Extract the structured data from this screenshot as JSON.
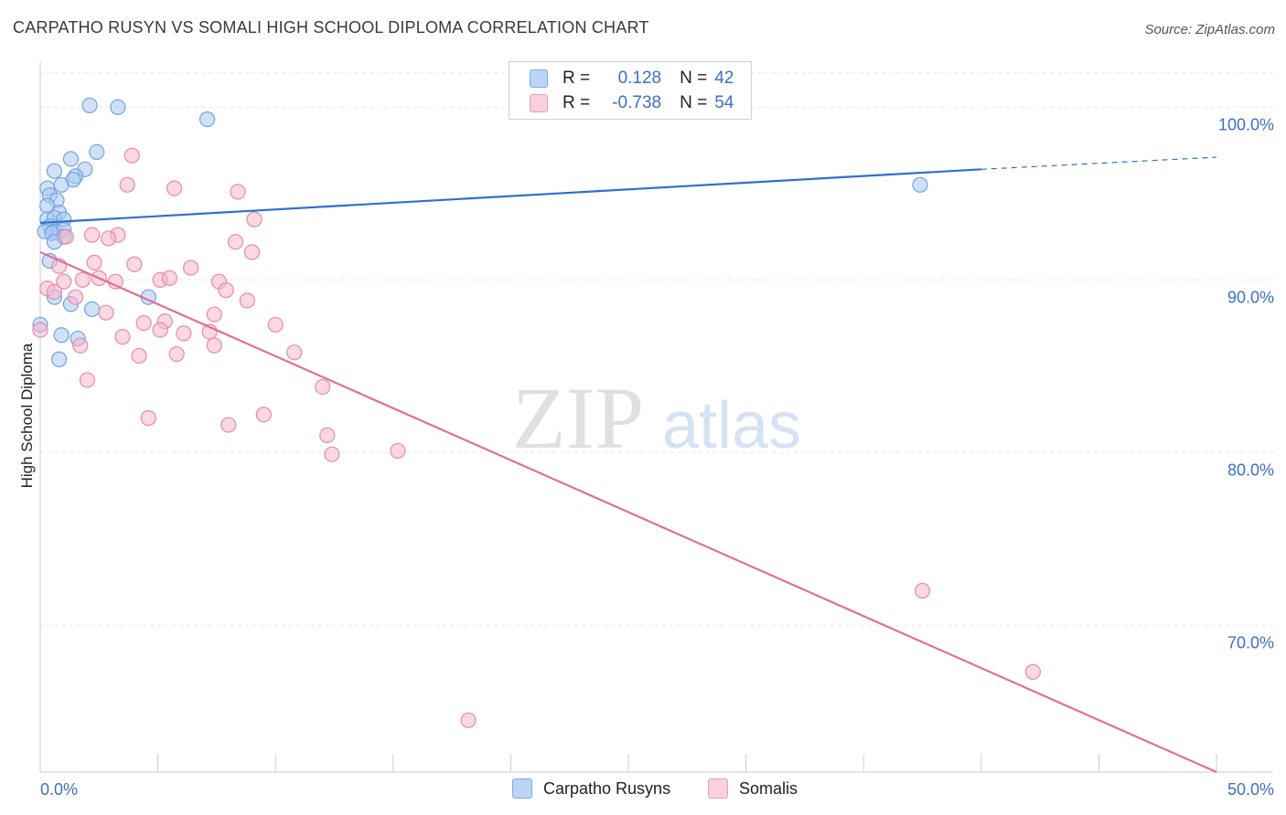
{
  "header": {
    "title": "CARPATHO RUSYN VS SOMALI HIGH SCHOOL DIPLOMA CORRELATION CHART",
    "source": "Source: ZipAtlas.com"
  },
  "legend": {
    "rows": [
      {
        "r_label": "R =",
        "r_value": "0.128",
        "n_label": "N =",
        "n_value": "42",
        "color": "#a9c8f0"
      },
      {
        "r_label": "R =",
        "r_value": "-0.738",
        "n_label": "N =",
        "n_value": "54",
        "color": "#f7b8cb"
      }
    ]
  },
  "bottom_legend": {
    "items": [
      {
        "label": "Carpatho Rusyns",
        "color": "#a9c8f0"
      },
      {
        "label": "Somalis",
        "color": "#f7b8cb"
      }
    ]
  },
  "watermark": {
    "zip": "ZIP",
    "atlas": "atlas"
  },
  "chart_data": {
    "type": "scatter",
    "title": "CARPATHO RUSYN VS SOMALI HIGH SCHOOL DIPLOMA CORRELATION CHART",
    "xlabel": "",
    "ylabel": "High School Diploma",
    "xlim": [
      0,
      50
    ],
    "ylim": [
      61.5,
      102.5
    ],
    "x_tick_labels": [
      {
        "value": 0,
        "label": "0.0%"
      },
      {
        "value": 50,
        "label": "50.0%"
      }
    ],
    "y_ticks": [
      {
        "value": 100,
        "label": "100.0%"
      },
      {
        "value": 90,
        "label": "90.0%"
      },
      {
        "value": 80,
        "label": "80.0%"
      },
      {
        "value": 70,
        "label": "70.0%"
      }
    ],
    "series": [
      {
        "name": "Carpatho Rusyns",
        "color": "#6fa3e6",
        "fill": "#a9c8f0",
        "line_color": "#2f6fd0",
        "trend": {
          "x": [
            0,
            40
          ],
          "y": [
            93.3,
            96.4
          ],
          "dashed_to": [
            50,
            97.1
          ]
        },
        "points": [
          [
            2.1,
            100.1
          ],
          [
            3.3,
            100.0
          ],
          [
            7.1,
            99.3
          ],
          [
            2.4,
            97.4
          ],
          [
            1.3,
            97.0
          ],
          [
            0.6,
            96.3
          ],
          [
            1.9,
            96.4
          ],
          [
            1.5,
            96.0
          ],
          [
            1.4,
            95.8
          ],
          [
            0.3,
            95.3
          ],
          [
            0.9,
            95.5
          ],
          [
            0.4,
            94.9
          ],
          [
            0.7,
            94.6
          ],
          [
            0.3,
            94.3
          ],
          [
            0.8,
            93.9
          ],
          [
            0.3,
            93.5
          ],
          [
            0.6,
            93.6
          ],
          [
            1.0,
            93.5
          ],
          [
            0.4,
            93.1
          ],
          [
            0.6,
            92.8
          ],
          [
            1.0,
            92.9
          ],
          [
            0.2,
            92.8
          ],
          [
            0.5,
            92.7
          ],
          [
            1.0,
            92.5
          ],
          [
            0.6,
            92.2
          ],
          [
            0.4,
            91.1
          ],
          [
            0.6,
            89.0
          ],
          [
            1.3,
            88.6
          ],
          [
            2.2,
            88.3
          ],
          [
            4.6,
            89.0
          ],
          [
            0.0,
            87.4
          ],
          [
            0.9,
            86.8
          ],
          [
            1.6,
            86.6
          ],
          [
            0.8,
            85.4
          ],
          [
            37.4,
            95.5
          ]
        ]
      },
      {
        "name": "Somalis",
        "color": "#e98aa8",
        "fill": "#f7b8cb",
        "line_color": "#e0709a",
        "trend": {
          "x": [
            0,
            50
          ],
          "y": [
            91.6,
            61.5
          ]
        },
        "points": [
          [
            3.9,
            97.2
          ],
          [
            3.7,
            95.5
          ],
          [
            5.7,
            95.3
          ],
          [
            8.4,
            95.1
          ],
          [
            9.1,
            93.5
          ],
          [
            2.2,
            92.6
          ],
          [
            3.3,
            92.6
          ],
          [
            1.1,
            92.5
          ],
          [
            2.9,
            92.4
          ],
          [
            8.3,
            92.2
          ],
          [
            9.0,
            91.6
          ],
          [
            2.3,
            91.0
          ],
          [
            4.0,
            90.9
          ],
          [
            6.4,
            90.7
          ],
          [
            0.8,
            90.8
          ],
          [
            1.8,
            90.0
          ],
          [
            1.0,
            89.9
          ],
          [
            2.5,
            90.1
          ],
          [
            3.2,
            89.9
          ],
          [
            5.1,
            90.0
          ],
          [
            5.5,
            90.1
          ],
          [
            7.6,
            89.9
          ],
          [
            7.9,
            89.4
          ],
          [
            0.3,
            89.5
          ],
          [
            0.6,
            89.3
          ],
          [
            1.5,
            89.0
          ],
          [
            8.8,
            88.8
          ],
          [
            2.8,
            88.1
          ],
          [
            4.4,
            87.5
          ],
          [
            5.3,
            87.6
          ],
          [
            7.4,
            88.0
          ],
          [
            10.0,
            87.4
          ],
          [
            5.1,
            87.1
          ],
          [
            6.1,
            86.9
          ],
          [
            7.2,
            87.0
          ],
          [
            3.5,
            86.7
          ],
          [
            0.0,
            87.1
          ],
          [
            1.7,
            86.2
          ],
          [
            7.4,
            86.2
          ],
          [
            4.2,
            85.6
          ],
          [
            5.8,
            85.7
          ],
          [
            10.8,
            85.8
          ],
          [
            2.0,
            84.2
          ],
          [
            12.0,
            83.8
          ],
          [
            4.6,
            82.0
          ],
          [
            9.5,
            82.2
          ],
          [
            8.0,
            81.6
          ],
          [
            12.2,
            81.0
          ],
          [
            12.4,
            79.9
          ],
          [
            15.2,
            80.1
          ],
          [
            37.5,
            72.0
          ],
          [
            42.2,
            67.3
          ],
          [
            18.2,
            64.5
          ]
        ]
      }
    ]
  }
}
